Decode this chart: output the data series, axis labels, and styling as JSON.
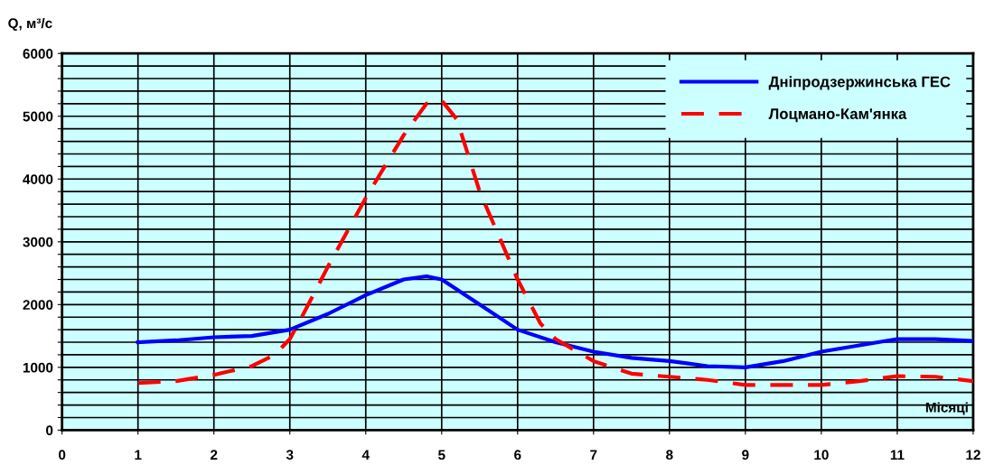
{
  "chart_data": {
    "type": "line",
    "ylabel": "Q, м³/с",
    "xlabel": "Місяці",
    "xlim": [
      0,
      12
    ],
    "xticks": [
      0,
      1,
      2,
      3,
      4,
      5,
      6,
      7,
      8,
      9,
      10,
      11,
      12
    ],
    "ylim": [
      0,
      6000
    ],
    "yticks": [
      0,
      {
        "value": 200,
        "label": null
      },
      {
        "value": 400,
        "label": null
      },
      {
        "value": 600,
        "label": null
      },
      {
        "value": 800,
        "label": null
      },
      1000,
      {
        "value": 1200,
        "label": null
      },
      {
        "value": 1400,
        "label": null
      },
      {
        "value": 1600,
        "label": null
      },
      {
        "value": 1800,
        "label": null
      },
      2000,
      {
        "value": 2200,
        "label": null
      },
      {
        "value": 2400,
        "label": null
      },
      {
        "value": 2600,
        "label": null
      },
      {
        "value": 2800,
        "label": null
      },
      3000,
      {
        "value": 3200,
        "label": null
      },
      {
        "value": 3400,
        "label": null
      },
      {
        "value": 3600,
        "label": null
      },
      {
        "value": 3800,
        "label": null
      },
      4000,
      {
        "value": 4200,
        "label": null
      },
      {
        "value": 4400,
        "label": null
      },
      {
        "value": 4600,
        "label": null
      },
      {
        "value": 4800,
        "label": null
      },
      5000,
      {
        "value": 5200,
        "label": null
      },
      {
        "value": 5400,
        "label": null
      },
      {
        "value": 5600,
        "label": null
      },
      {
        "value": 5800,
        "label": null
      },
      6000
    ],
    "grid": true,
    "legend": "top right",
    "marker": "none",
    "series": [
      {
        "name": "Дніпродзержинська ГЕС",
        "color": "#0000ff",
        "line_style": "solid",
        "x": [
          1,
          1.5,
          2,
          2.5,
          3,
          3.5,
          4,
          4.5,
          4.8,
          5,
          5.5,
          6,
          6.5,
          7,
          7.5,
          8,
          8.5,
          9,
          9.5,
          10,
          10.5,
          11,
          11.5,
          12
        ],
        "values": [
          1400,
          1430,
          1480,
          1500,
          1600,
          1850,
          2150,
          2400,
          2450,
          2400,
          2000,
          1600,
          1400,
          1250,
          1150,
          1100,
          1020,
          1000,
          1100,
          1250,
          1350,
          1450,
          1450,
          1420
        ]
      },
      {
        "name": "Лоцмано-Кам'янка",
        "color": "#ff0000",
        "line_style": "dashed",
        "x": [
          1,
          1.5,
          2,
          2.5,
          2.8,
          3,
          3.2,
          3.5,
          4,
          4.5,
          4.8,
          5,
          5.2,
          5.5,
          6,
          6.3,
          6.5,
          7,
          7.5,
          8,
          8.5,
          9,
          9.5,
          10,
          10.5,
          11,
          11.5,
          12
        ],
        "values": [
          750,
          780,
          880,
          1020,
          1200,
          1450,
          1900,
          2600,
          3700,
          4700,
          5200,
          5250,
          4950,
          3800,
          2400,
          1700,
          1450,
          1100,
          900,
          850,
          800,
          720,
          720,
          720,
          780,
          860,
          850,
          780
        ]
      }
    ]
  }
}
